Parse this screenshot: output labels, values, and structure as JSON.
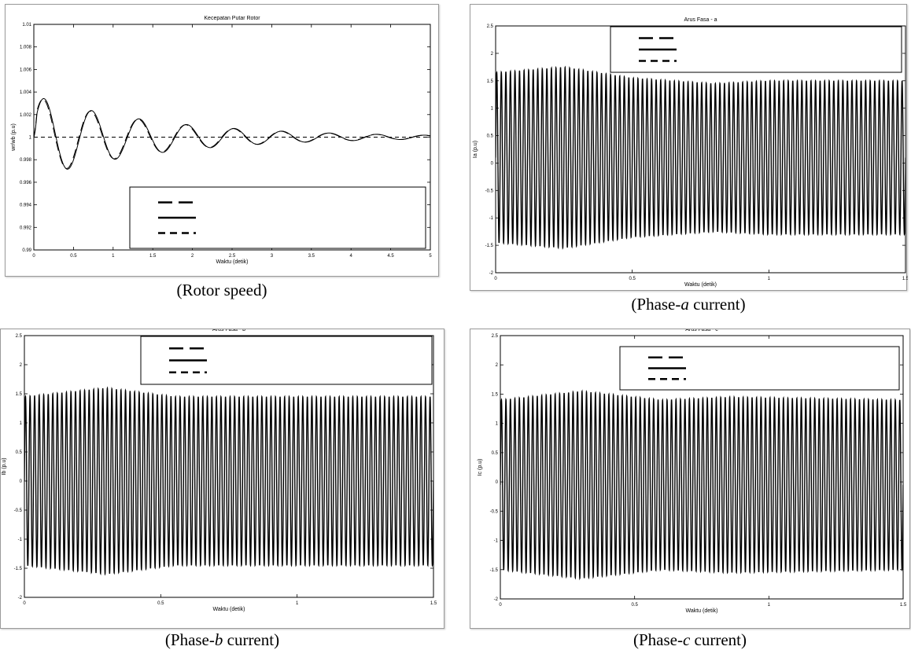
{
  "captions": {
    "rotor": {
      "pre": "(Rotor speed)",
      "ital": "",
      "post": ""
    },
    "phase_a": {
      "pre": "(Phase-",
      "ital": "a",
      "post": " current)"
    },
    "phase_b": {
      "pre": "(Phase-",
      "ital": "b",
      "post": " current)"
    },
    "phase_c": {
      "pre": "(Phase-",
      "ital": "c",
      "post": " current)"
    }
  },
  "chart_data": [
    {
      "id": "rotor",
      "type": "line",
      "title": "Kecepatan Putar Rotor",
      "xlabel": "Waktu (detik)",
      "ylabel": "wr/wb (p.u)",
      "xlim": [
        0,
        5
      ],
      "ylim": [
        0.99,
        1.01
      ],
      "xticks": [
        "0",
        "0.5",
        "1",
        "1.5",
        "2",
        "2.5",
        "3",
        "3.5",
        "4",
        "4.5",
        "5"
      ],
      "yticks": [
        "0.99",
        "0.992",
        "0.994",
        "0.996",
        "0.998",
        "1",
        "1.002",
        "1.004",
        "1.006",
        "1.008",
        "1.01"
      ],
      "grid": false,
      "legend": {
        "position": "lower-right",
        "styles": [
          "long-dash",
          "solid",
          "dashed"
        ]
      },
      "series": [
        {
          "style": "solid",
          "offset": 1.0,
          "amplitude": 0.0037,
          "decay": 0.62,
          "period": 0.6,
          "peak_time": 0.13
        },
        {
          "style": "long-dash",
          "offset": 1.0,
          "amplitude": 0.0036,
          "decay": 0.62,
          "period": 0.6,
          "peak_time": 0.12
        },
        {
          "style": "dashed",
          "offset": 1.0,
          "amplitude": 0.0,
          "decay": 0,
          "period": 1,
          "peak_time": 0
        }
      ]
    },
    {
      "id": "phase_a",
      "type": "line",
      "title": "Arus Fasa - a",
      "xlabel": "Waktu (detik)",
      "ylabel": "Ia (p.u)",
      "xlim": [
        0,
        1.5
      ],
      "ylim": [
        -2,
        2.5
      ],
      "xticks": [
        "0",
        "0.5",
        "1",
        "1.5"
      ],
      "yticks": [
        "-2",
        "-1.5",
        "-1",
        "-0.5",
        "0",
        "0.5",
        "1",
        "1.5",
        "2",
        "2.5"
      ],
      "grid": false,
      "legend": {
        "position": "top-right",
        "styles": [
          "long-dash",
          "solid",
          "dashed"
        ]
      },
      "series": [
        {
          "style": "solid",
          "frequency": 60,
          "offset": 0.1,
          "amplitude_points": [
            [
              0,
              1.55
            ],
            [
              0.25,
              1.65
            ],
            [
              0.5,
              1.45
            ],
            [
              0.8,
              1.35
            ],
            [
              1.0,
              1.4
            ],
            [
              1.5,
              1.4
            ]
          ]
        }
      ]
    },
    {
      "id": "phase_b",
      "type": "line",
      "title": "Arus Fasa - b",
      "xlabel": "Waktu (detik)",
      "ylabel": "Ib (p.u)",
      "xlim": [
        0,
        1.5
      ],
      "ylim": [
        -2,
        2.5
      ],
      "xticks": [
        "0",
        "0.5",
        "1",
        "1.5"
      ],
      "yticks": [
        "-2",
        "-1.5",
        "-1",
        "-0.5",
        "0",
        "0.5",
        "1",
        "1.5",
        "2",
        "2.5"
      ],
      "grid": false,
      "legend": {
        "position": "top-right",
        "styles": [
          "long-dash",
          "solid",
          "dashed"
        ]
      },
      "series": [
        {
          "style": "solid",
          "frequency": 60,
          "offset": 0.0,
          "amplitude_points": [
            [
              0,
              1.45
            ],
            [
              0.3,
              1.6
            ],
            [
              0.55,
              1.45
            ],
            [
              1.0,
              1.45
            ],
            [
              1.5,
              1.45
            ]
          ]
        }
      ]
    },
    {
      "id": "phase_c",
      "type": "line",
      "title": "Arus Fasa - c",
      "xlabel": "Waktu (detik)",
      "ylabel": "Ic (p.u)",
      "xlim": [
        0,
        1.5
      ],
      "ylim": [
        -2,
        2.5
      ],
      "xticks": [
        "0",
        "0.5",
        "1",
        "1.5"
      ],
      "yticks": [
        "-2",
        "-1.5",
        "-1",
        "-0.5",
        "0",
        "0.5",
        "1",
        "1.5",
        "2",
        "2.5"
      ],
      "grid": false,
      "legend": {
        "position": "top-right",
        "styles": [
          "long-dash",
          "solid",
          "dashed"
        ]
      },
      "series": [
        {
          "style": "solid",
          "frequency": 60,
          "offset": -0.05,
          "amplitude_points": [
            [
              0,
              1.45
            ],
            [
              0.3,
              1.6
            ],
            [
              0.6,
              1.45
            ],
            [
              0.85,
              1.5
            ],
            [
              1.5,
              1.45
            ]
          ]
        }
      ]
    }
  ]
}
